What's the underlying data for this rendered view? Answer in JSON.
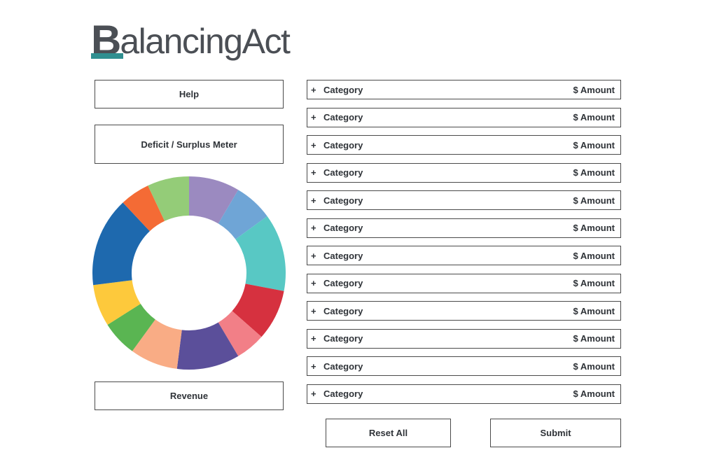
{
  "logo": {
    "letter": "B",
    "text": "alancingAct",
    "brand_color": "#2f8f90"
  },
  "sidebar": {
    "help_label": "Help",
    "meter_label": "Deficit / Surplus Meter",
    "revenue_label": "Revenue"
  },
  "chart_data": {
    "type": "pie",
    "donut": true,
    "title": "",
    "slices": [
      {
        "value": 8.5,
        "color": "#9b8ac0"
      },
      {
        "value": 6.5,
        "color": "#6fa5d6"
      },
      {
        "value": 13,
        "color": "#58c8c4"
      },
      {
        "value": 8.5,
        "color": "#d6313f"
      },
      {
        "value": 5,
        "color": "#f27f87"
      },
      {
        "value": 10.5,
        "color": "#5b4f9a"
      },
      {
        "value": 8,
        "color": "#f9ac85"
      },
      {
        "value": 6,
        "color": "#5ab552"
      },
      {
        "value": 7,
        "color": "#fdc93c"
      },
      {
        "value": 15,
        "color": "#1e69ae"
      },
      {
        "value": 5,
        "color": "#f46b35"
      },
      {
        "value": 7,
        "color": "#94cc78"
      }
    ]
  },
  "categories": [
    {
      "plus": "+",
      "label": "Category",
      "amount": "$ Amount"
    },
    {
      "plus": "+",
      "label": "Category",
      "amount": "$ Amount"
    },
    {
      "plus": "+",
      "label": "Category",
      "amount": "$ Amount"
    },
    {
      "plus": "+",
      "label": "Category",
      "amount": "$ Amount"
    },
    {
      "plus": "+",
      "label": "Category",
      "amount": "$ Amount"
    },
    {
      "plus": "+",
      "label": "Category",
      "amount": "$ Amount"
    },
    {
      "plus": "+",
      "label": "Category",
      "amount": "$ Amount"
    },
    {
      "plus": "+",
      "label": "Category",
      "amount": "$ Amount"
    },
    {
      "plus": "+",
      "label": "Category",
      "amount": "$ Amount"
    },
    {
      "plus": "+",
      "label": "Category",
      "amount": "$ Amount"
    },
    {
      "plus": "+",
      "label": "Category",
      "amount": "$ Amount"
    },
    {
      "plus": "+",
      "label": "Category",
      "amount": "$ Amount"
    }
  ],
  "actions": {
    "reset_label": "Reset All",
    "submit_label": "Submit"
  }
}
